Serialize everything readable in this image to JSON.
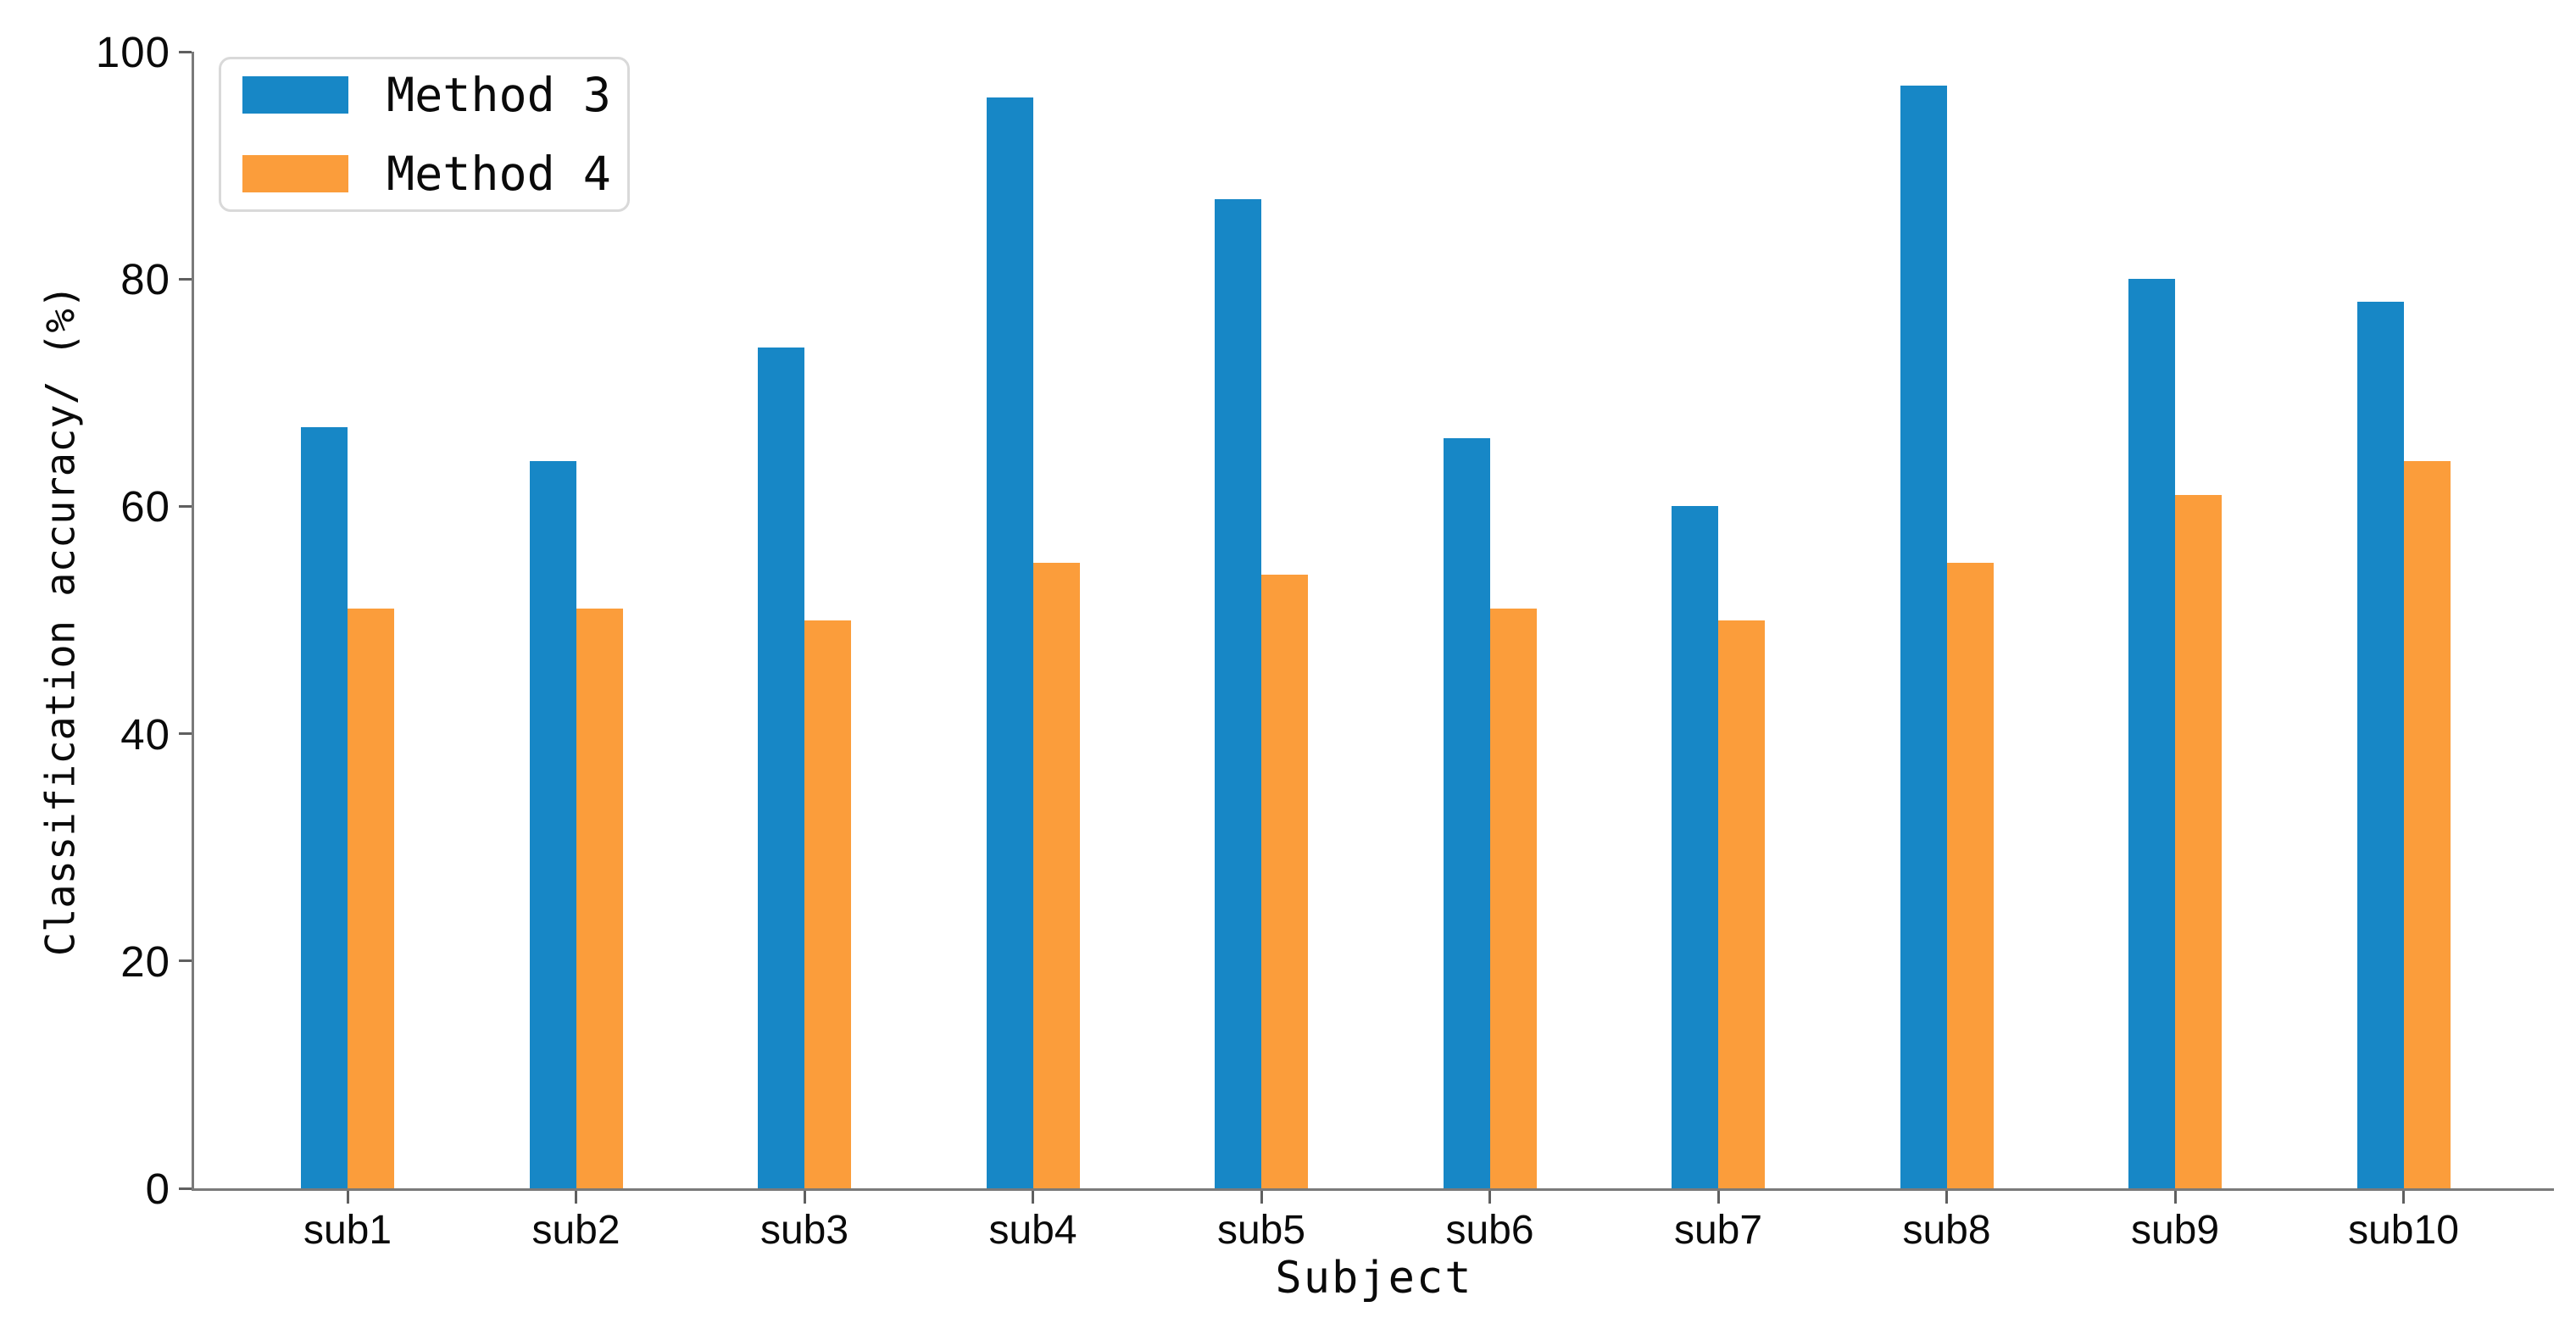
{
  "chart_data": {
    "type": "bar",
    "title": "",
    "xlabel": "Subject",
    "ylabel": "Classification accuracy/ (%)",
    "categories": [
      "sub1",
      "sub2",
      "sub3",
      "sub4",
      "sub5",
      "sub6",
      "sub7",
      "sub8",
      "sub9",
      "sub10"
    ],
    "series": [
      {
        "name": "Method 3",
        "color": "#1787c6",
        "values": [
          67,
          64,
          74,
          96,
          87,
          66,
          60,
          97,
          80,
          78
        ]
      },
      {
        "name": "Method 4",
        "color": "#fb9d3b",
        "values": [
          51,
          51,
          50,
          55,
          54,
          51,
          50,
          55,
          61,
          64
        ]
      }
    ],
    "ylim": [
      0,
      100
    ],
    "yticks": [
      0,
      20,
      40,
      60,
      80,
      100
    ],
    "grid": false,
    "legend_position": "upper-left",
    "spines": "left-bottom-only",
    "spine_color": "#7a7a7a"
  }
}
